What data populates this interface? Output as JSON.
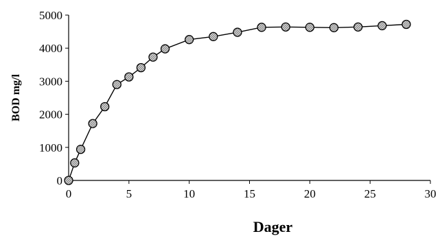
{
  "chart_data": {
    "type": "line",
    "title": "",
    "xlabel": "Dager",
    "ylabel": "BOD mg/l",
    "xlim": [
      0,
      30
    ],
    "ylim": [
      0,
      5000
    ],
    "x_ticks": [
      0,
      5,
      10,
      15,
      20,
      25,
      30
    ],
    "y_ticks": [
      0,
      1000,
      2000,
      3000,
      4000,
      5000
    ],
    "grid": false,
    "legend": "none",
    "colors": {
      "line": "#000000",
      "marker_fill": "#b0b0b0",
      "marker_edge": "#000000"
    },
    "series": [
      {
        "x": [
          0,
          0.5,
          1,
          2,
          3,
          4,
          5,
          6,
          7,
          8,
          10,
          12,
          14,
          16,
          18,
          20,
          22,
          24,
          26,
          28
        ],
        "y": [
          0,
          530,
          940,
          1720,
          2230,
          2900,
          3130,
          3410,
          3730,
          3980,
          4260,
          4350,
          4480,
          4630,
          4640,
          4630,
          4620,
          4640,
          4680,
          4720
        ]
      }
    ]
  }
}
